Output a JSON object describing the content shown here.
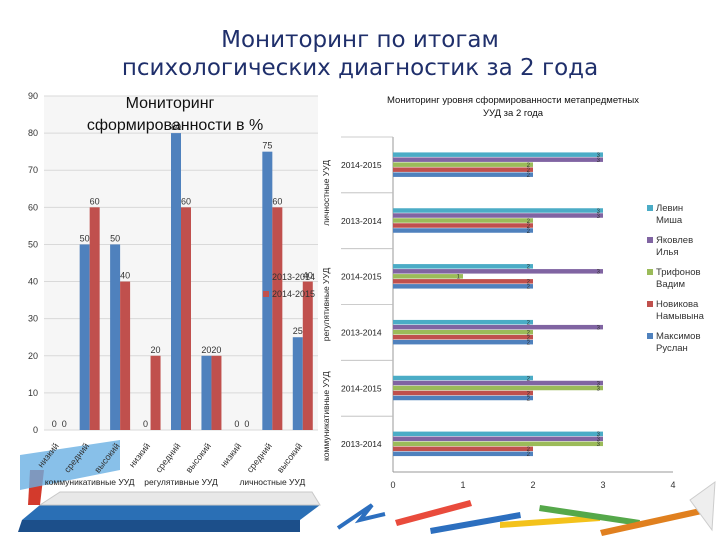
{
  "page": {
    "title_line1": "Мониторинг по итогам",
    "title_line2": "психологических диагностик за 2 года"
  },
  "chart_data": [
    {
      "type": "bar",
      "title_line1": "Мониторинг",
      "title_line2": "сформированности в %",
      "ylim": [
        0,
        90
      ],
      "yticks": [
        0,
        10,
        20,
        30,
        40,
        50,
        60,
        70,
        80,
        90
      ],
      "categories": [
        "низкий",
        "средний",
        "высокий",
        "низкий",
        "средний",
        "высокий",
        "низкий",
        "средний",
        "высокий"
      ],
      "groups": [
        {
          "label": "коммуникативные УУД",
          "span": [
            0,
            2
          ]
        },
        {
          "label": "регулятивные УУД",
          "span": [
            3,
            5
          ]
        },
        {
          "label": "личностные УУД",
          "span": [
            6,
            8
          ]
        }
      ],
      "series": [
        {
          "name": "2013-2014",
          "color": "#4f81bd",
          "values": [
            0,
            50,
            50,
            0,
            80,
            20,
            0,
            75,
            25
          ]
        },
        {
          "name": "2014-2015",
          "color": "#c0504d",
          "values": [
            0,
            60,
            40,
            20,
            60,
            20,
            0,
            60,
            40
          ]
        }
      ],
      "legend_position": "right"
    },
    {
      "type": "bar",
      "orientation": "horizontal",
      "title_line1": "Мониторинг уровня сформированности метапредметных",
      "title_line2": "УУД за 2 года",
      "xlim": [
        0,
        4
      ],
      "xticks": [
        0,
        1,
        2,
        3,
        4
      ],
      "group_labels": [
        "личностные УУД",
        "регулятивные УУД",
        "коммуникативные УУД"
      ],
      "categories": [
        "2014-2015",
        "2013-2014",
        "2014-2015",
        "2013-2014",
        "2014-2015",
        "2013-2014"
      ],
      "series": [
        {
          "name": "Левин Миша",
          "color": "#4bacc6",
          "values": [
            3,
            3,
            2,
            2,
            2,
            3
          ]
        },
        {
          "name": "Яковлев Илья",
          "color": "#8064a2",
          "values": [
            3,
            3,
            3,
            3,
            3,
            3
          ]
        },
        {
          "name": "Трифонов Вадим",
          "color": "#9bbb59",
          "values": [
            2,
            2,
            1,
            2,
            3,
            3
          ]
        },
        {
          "name": "Новикова Намывына",
          "color": "#c0504d",
          "values": [
            2,
            2,
            2,
            2,
            2,
            2
          ]
        },
        {
          "name": "Максимов Руслан",
          "color": "#4f81bd",
          "values": [
            2,
            2,
            2,
            2,
            2,
            2
          ]
        }
      ],
      "legend_position": "right"
    }
  ]
}
